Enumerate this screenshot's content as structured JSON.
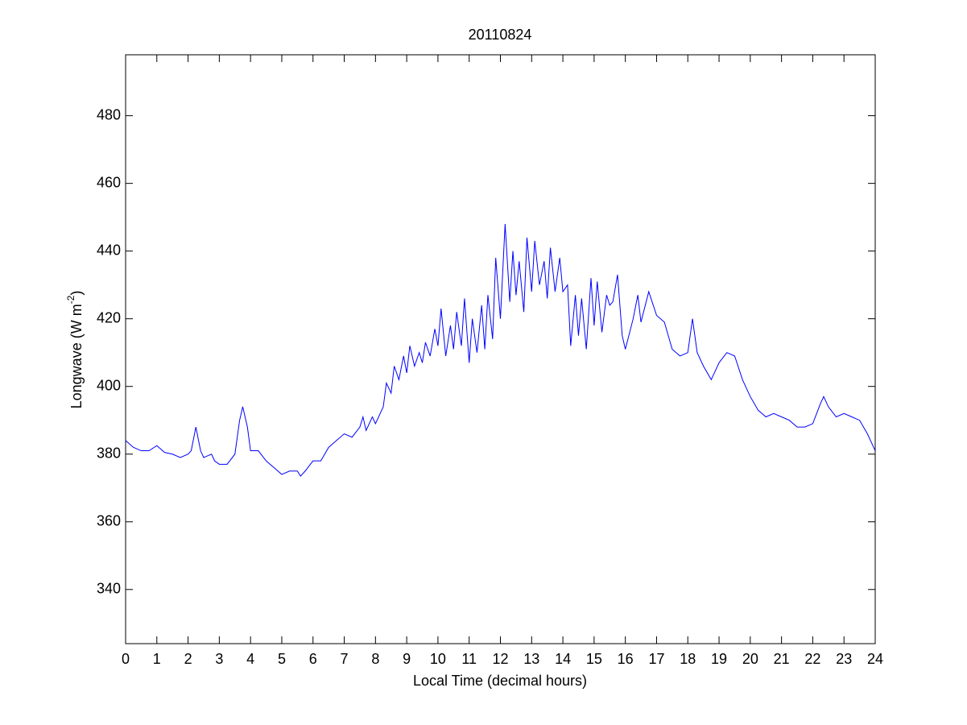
{
  "chart_data": {
    "type": "line",
    "title": "20110824",
    "xlabel": "Local Time (decimal hours)",
    "ylabel": "Longwave (W m",
    "ylabel_sup": "-2",
    "ylabel_end": ")",
    "xlim": [
      0,
      24
    ],
    "ylim": [
      324,
      498
    ],
    "xticks": [
      0,
      1,
      2,
      3,
      4,
      5,
      6,
      7,
      8,
      9,
      10,
      11,
      12,
      13,
      14,
      15,
      16,
      17,
      18,
      19,
      20,
      21,
      22,
      23,
      24
    ],
    "yticks": [
      340,
      360,
      380,
      400,
      420,
      440,
      460,
      480
    ],
    "series": [
      {
        "color": "#0000ff",
        "x": [
          0,
          0.25,
          0.5,
          0.75,
          1.0,
          1.25,
          1.5,
          1.75,
          2.0,
          2.1,
          2.25,
          2.4,
          2.5,
          2.75,
          2.85,
          3.0,
          3.25,
          3.5,
          3.65,
          3.75,
          3.9,
          4.0,
          4.25,
          4.5,
          4.75,
          5.0,
          5.25,
          5.5,
          5.6,
          5.75,
          6.0,
          6.25,
          6.5,
          6.75,
          7.0,
          7.25,
          7.5,
          7.6,
          7.7,
          7.9,
          8.0,
          8.25,
          8.35,
          8.5,
          8.6,
          8.75,
          8.9,
          9.0,
          9.1,
          9.25,
          9.4,
          9.5,
          9.6,
          9.75,
          9.9,
          10.0,
          10.1,
          10.25,
          10.4,
          10.5,
          10.6,
          10.75,
          10.85,
          11.0,
          11.1,
          11.25,
          11.4,
          11.5,
          11.6,
          11.75,
          11.85,
          12.0,
          12.15,
          12.3,
          12.4,
          12.5,
          12.6,
          12.75,
          12.85,
          13.0,
          13.1,
          13.25,
          13.4,
          13.5,
          13.6,
          13.75,
          13.9,
          14.0,
          14.15,
          14.25,
          14.4,
          14.5,
          14.6,
          14.75,
          14.9,
          15.0,
          15.1,
          15.25,
          15.4,
          15.5,
          15.6,
          15.75,
          15.9,
          16.0,
          16.25,
          16.4,
          16.5,
          16.75,
          17.0,
          17.25,
          17.5,
          17.75,
          18.0,
          18.15,
          18.3,
          18.5,
          18.75,
          19.0,
          19.25,
          19.5,
          19.75,
          20.0,
          20.25,
          20.5,
          20.75,
          21.0,
          21.25,
          21.5,
          21.75,
          22.0,
          22.25,
          22.35,
          22.5,
          22.75,
          23.0,
          23.25,
          23.5,
          23.75,
          24.0
        ],
        "values": [
          384,
          382,
          381,
          381,
          382.5,
          380.5,
          380,
          379,
          380,
          381,
          388,
          381,
          379,
          380,
          378,
          377,
          377,
          380,
          390,
          394,
          388,
          381,
          381,
          378,
          376,
          374,
          375,
          375,
          373.5,
          375,
          378,
          378,
          382,
          384,
          386,
          385,
          388,
          391,
          387,
          391,
          389,
          394,
          401,
          398,
          406,
          402,
          409,
          404,
          412,
          406,
          410,
          407,
          413,
          409,
          417,
          412,
          423,
          409,
          418,
          411,
          422,
          412,
          426,
          407,
          420,
          410,
          424,
          411,
          427,
          414,
          438,
          420,
          448,
          425,
          440,
          427,
          437,
          422,
          444,
          428,
          443,
          430,
          437,
          426,
          441,
          428,
          438,
          428,
          430,
          412,
          427,
          415,
          426,
          411,
          432,
          418,
          431,
          416,
          427,
          424,
          425,
          433,
          415,
          411,
          420,
          427,
          419,
          428,
          421,
          419,
          411,
          409,
          410,
          420,
          410,
          406,
          402,
          407,
          410,
          409,
          402,
          397,
          393,
          391,
          392,
          391,
          390,
          388,
          388,
          389,
          395,
          397,
          394,
          391,
          392,
          391,
          390,
          386,
          381
        ]
      }
    ]
  }
}
